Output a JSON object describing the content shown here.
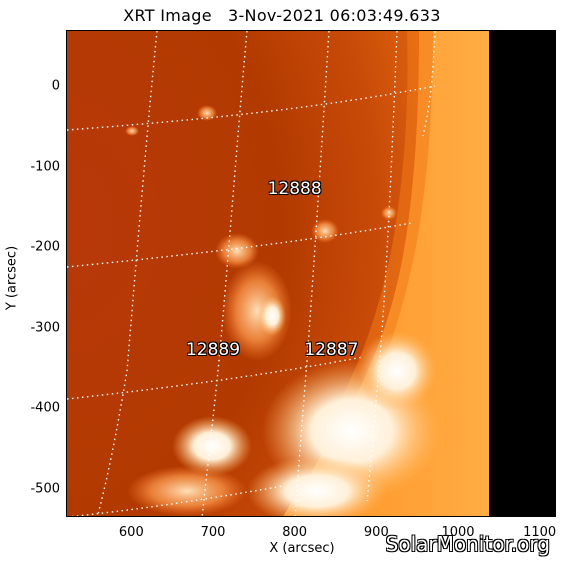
{
  "title": "XRT Image   3-Nov-2021 06:03:49.633",
  "x_axis": {
    "label": "X (arcsec)",
    "ticks": [
      "600",
      "700",
      "800",
      "900",
      "1000",
      "1100"
    ],
    "range": [
      520,
      1120
    ]
  },
  "y_axis": {
    "label": "Y (arcsec)",
    "ticks": [
      "0",
      "-100",
      "-200",
      "-300",
      "-400",
      "-500"
    ],
    "range": [
      -535,
      70
    ]
  },
  "regions": [
    {
      "label": "12888",
      "x": 800,
      "y": -128
    },
    {
      "label": "12889",
      "x": 700,
      "y": -328
    },
    {
      "label": "12887",
      "x": 845,
      "y": -328
    }
  ],
  "watermark": "SolarMonitor.org",
  "colors": {
    "disk_dark": "#b23a00",
    "disk_mid": "#d45a10",
    "limb_bright": "#ff9a2a",
    "space": "#000000"
  }
}
